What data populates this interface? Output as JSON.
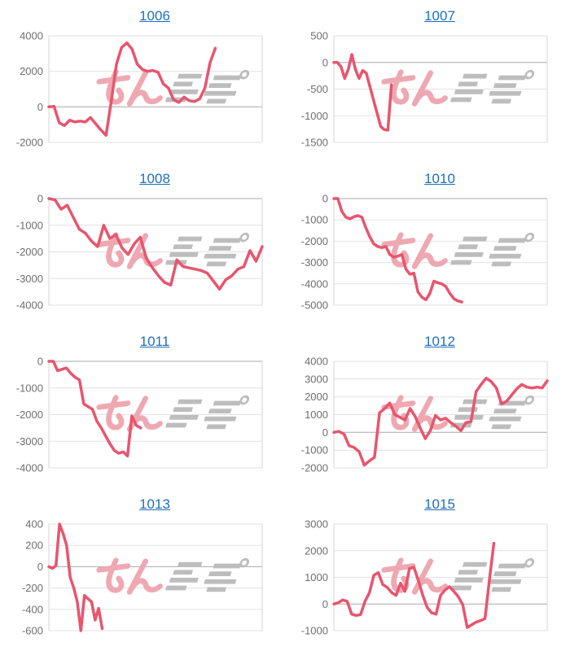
{
  "page": {
    "background": "#ffffff"
  },
  "style": {
    "title_color": "#1e6fba",
    "line_color": "#e8556d",
    "grid_color": "#e2e2e2",
    "zero_line_color": "#a8a8a8",
    "axis_edge_color": "#d5d5d5",
    "label_color": "#6e6e6e",
    "watermark_pink": "#eea8b2",
    "watermark_gray": "#bdbdbd"
  },
  "watermark": {
    "name": "minrepo-logo-watermark"
  },
  "chart_data": [
    {
      "type": "line",
      "title": "1006",
      "xlabel": "",
      "ylabel": "",
      "ylim": [
        -2000,
        4000
      ],
      "yticks": [
        4000,
        2000,
        0,
        -2000
      ],
      "grid": true,
      "legend": false,
      "x_extent_fraction": 0.78,
      "values": [
        0,
        30,
        -900,
        -1050,
        -750,
        -850,
        -800,
        -850,
        -600,
        -950,
        -1300,
        -1600,
        300,
        2400,
        3350,
        3600,
        3250,
        2400,
        2100,
        2000,
        2050,
        1950,
        1300,
        1050,
        400,
        250,
        550,
        350,
        300,
        450,
        1050,
        2500,
        3300
      ]
    },
    {
      "type": "line",
      "title": "1007",
      "xlabel": "",
      "ylabel": "",
      "ylim": [
        -1500,
        500
      ],
      "yticks": [
        500,
        0,
        -500,
        -1000,
        -1500
      ],
      "grid": true,
      "legend": false,
      "x_extent_fraction": 0.27,
      "values": [
        0,
        0,
        -80,
        -300,
        -130,
        150,
        -130,
        -300,
        -150,
        -200,
        -450,
        -700,
        -950,
        -1200,
        -1260,
        -1270,
        -420
      ]
    },
    {
      "type": "line",
      "title": "1008",
      "xlabel": "",
      "ylabel": "",
      "ylim": [
        -4000,
        0
      ],
      "yticks": [
        0,
        -1000,
        -2000,
        -3000,
        -4000
      ],
      "grid": true,
      "legend": false,
      "x_extent_fraction": 1.0,
      "values": [
        0,
        -50,
        -400,
        -250,
        -700,
        -1150,
        -1300,
        -1600,
        -1800,
        -1000,
        -1500,
        -1350,
        -1850,
        -2100,
        -1700,
        -1450,
        -2250,
        -2600,
        -2900,
        -3150,
        -3250,
        -2300,
        -2550,
        -2600,
        -2650,
        -2700,
        -2800,
        -3100,
        -3400,
        -3050,
        -2900,
        -2650,
        -2550,
        -1950,
        -2350,
        -1800
      ]
    },
    {
      "type": "line",
      "title": "1010",
      "xlabel": "",
      "ylabel": "",
      "ylim": [
        -5000,
        0
      ],
      "yticks": [
        0,
        -1000,
        -2000,
        -3000,
        -4000,
        -5000
      ],
      "grid": true,
      "legend": false,
      "x_extent_fraction": 0.6,
      "values": [
        0,
        0,
        -600,
        -875,
        -950,
        -850,
        -800,
        -875,
        -1375,
        -1800,
        -2125,
        -2250,
        -2300,
        -2250,
        -2625,
        -2750,
        -2700,
        -2625,
        -3300,
        -3550,
        -3500,
        -4375,
        -4625,
        -4750,
        -4450,
        -3875,
        -3950,
        -4000,
        -4125,
        -4450,
        -4700,
        -4800,
        -4850
      ]
    },
    {
      "type": "line",
      "title": "1011",
      "xlabel": "",
      "ylabel": "",
      "ylim": [
        -4000,
        0
      ],
      "yticks": [
        0,
        -1000,
        -2000,
        -3000,
        -4000
      ],
      "grid": true,
      "legend": false,
      "x_extent_fraction": 0.43,
      "values": [
        0,
        0,
        -350,
        -300,
        -250,
        -450,
        -600,
        -700,
        -1600,
        -1700,
        -1800,
        -2250,
        -2500,
        -2800,
        -3100,
        -3350,
        -3450,
        -3400,
        -3550,
        -2050,
        -2400,
        -2500
      ]
    },
    {
      "type": "line",
      "title": "1012",
      "xlabel": "",
      "ylabel": "",
      "ylim": [
        -2000,
        4000
      ],
      "yticks": [
        4000,
        3000,
        2000,
        1000,
        0,
        -1000,
        -2000
      ],
      "grid": true,
      "legend": false,
      "x_extent_fraction": 1.0,
      "values": [
        0,
        50,
        -100,
        -750,
        -850,
        -1100,
        -1850,
        -1600,
        -1400,
        1100,
        1350,
        1650,
        1000,
        850,
        700,
        1350,
        900,
        250,
        -350,
        100,
        950,
        700,
        800,
        550,
        350,
        100,
        550,
        600,
        2300,
        2700,
        3050,
        2850,
        2500,
        1600,
        1750,
        2100,
        2450,
        2700,
        2550,
        2500,
        2550,
        2500,
        2900
      ]
    },
    {
      "type": "line",
      "title": "1013",
      "xlabel": "",
      "ylabel": "",
      "ylim": [
        -600,
        400
      ],
      "yticks": [
        400,
        200,
        0,
        -200,
        -400,
        -600
      ],
      "grid": true,
      "legend": false,
      "x_extent_fraction": 0.25,
      "values": [
        0,
        -15,
        10,
        400,
        310,
        200,
        -100,
        -200,
        -330,
        -600,
        -270,
        -300,
        -330,
        -500,
        -390,
        -580
      ]
    },
    {
      "type": "line",
      "title": "1015",
      "xlabel": "",
      "ylabel": "",
      "ylim": [
        -1000,
        3000
      ],
      "yticks": [
        3000,
        2000,
        1000,
        0,
        -1000
      ],
      "grid": true,
      "legend": false,
      "x_extent_fraction": 0.75,
      "values": [
        0,
        50,
        150,
        100,
        -380,
        -430,
        -400,
        100,
        425,
        1080,
        1180,
        730,
        625,
        425,
        325,
        780,
        475,
        1330,
        1380,
        880,
        325,
        -130,
        -330,
        -380,
        325,
        525,
        650,
        475,
        275,
        -30,
        -880,
        -780,
        -680,
        -620,
        -550,
        900,
        2280
      ]
    }
  ]
}
